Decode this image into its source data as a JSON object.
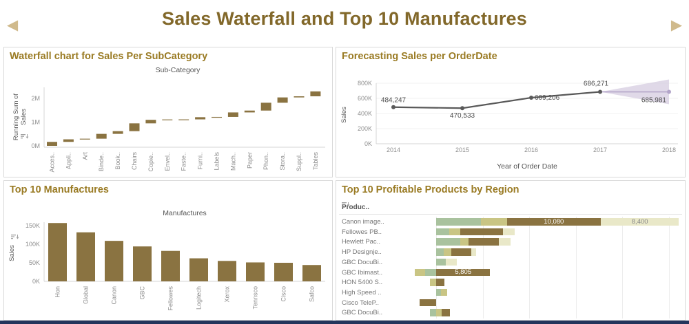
{
  "colors": {
    "title": "#82682a",
    "ptitle": "#9a7b24",
    "arrow": "#d0ba8c",
    "border": "#d9d9d9",
    "olive": "#8a7341",
    "tick": "#8e8e8e",
    "alabel": "#555555",
    "line": "#595959",
    "band": "#d5cce0",
    "bandaccent": "#b3a5c9",
    "navy": "#24355c"
  },
  "header": {
    "title": "Sales Waterfall and Top 10 Manufactures",
    "prev_icon": "◀",
    "next_icon": "▶"
  },
  "icons": {
    "prev": "chevron-left-icon",
    "next": "chevron-right-icon",
    "sort": "sort-descending-icon"
  },
  "chart_data": [
    {
      "type": "bar",
      "subtype": "waterfall",
      "title": "Waterfall chart for Sales Per SubCategory",
      "axis_title": "Sub-Category",
      "ylabel": "Running Sum of Sales",
      "ylabel_lines": [
        "Running Sum of",
        "Sales"
      ],
      "y_ticks": [
        "0M",
        "1M",
        "2M"
      ],
      "y_tick_values": [
        0,
        1000000,
        2000000
      ],
      "ylim": [
        0,
        2400000
      ],
      "categories": [
        "Acces..",
        "Appli..",
        "Art",
        "Binde..",
        "Book..",
        "Chairs",
        "Copie..",
        "Envel..",
        "Faste..",
        "Furni..",
        "Labels",
        "Mach..",
        "Paper",
        "Phon..",
        "Stora..",
        "Suppl..",
        "Tables"
      ],
      "values": [
        167000,
        107000,
        27000,
        203000,
        115000,
        328000,
        149000,
        16000,
        3000,
        92000,
        12000,
        189000,
        78000,
        330000,
        224000,
        47000,
        207000
      ],
      "running_totals": [
        167000,
        274000,
        301000,
        504000,
        619000,
        947000,
        1096000,
        1112000,
        1115000,
        1207000,
        1219000,
        1408000,
        1486000,
        1816000,
        2040000,
        2087000,
        2294000
      ]
    },
    {
      "type": "line",
      "title": "Forecasting Sales per OrderDate",
      "xlabel": "Year of Order Date",
      "ylabel": "Sales",
      "x": [
        "2014",
        "2015",
        "2016",
        "2017",
        "2018"
      ],
      "values": [
        484247,
        470533,
        609206,
        686271,
        685981
      ],
      "point_labels": [
        "484,247",
        "470,533",
        "609,206",
        "686,271",
        "685,981"
      ],
      "forecast_start_index": 3,
      "y_ticks": [
        "0K",
        "200K",
        "400K",
        "600K",
        "800K"
      ],
      "y_tick_values": [
        0,
        200000,
        400000,
        600000,
        800000
      ],
      "ylim": [
        0,
        800000
      ]
    },
    {
      "type": "bar",
      "title": "Top 10 Manufactures",
      "axis_title": "Manufactures",
      "ylabel": "Sales",
      "categories": [
        "Hon",
        "Global",
        "Canon",
        "GBC",
        "Fellowes",
        "Logitech",
        "Xerox",
        "Tennsco",
        "Cisco",
        "Safco"
      ],
      "values": [
        157000,
        132000,
        109000,
        94000,
        82000,
        62000,
        55000,
        51000,
        50000,
        44000
      ],
      "y_ticks": [
        "0K",
        "50K",
        "100K",
        "150K"
      ],
      "y_tick_values": [
        0,
        50000,
        100000,
        150000
      ],
      "ylim": [
        0,
        165000
      ]
    },
    {
      "type": "bar",
      "subtype": "stacked-horizontal",
      "title": "Top 10 Profitable Products by Region",
      "column_header": "Produc..",
      "series_colors": {
        "Central": "#a9c29e",
        "East": "#c9c584",
        "South": "#8a7341",
        "West": "#e9e8c8"
      },
      "rows": [
        {
          "label": "Canon image..",
          "segments": [
            {
              "region": "Central",
              "value": 4800
            },
            {
              "region": "East",
              "value": 2800
            },
            {
              "region": "South",
              "value": 10080,
              "label": "10,080",
              "label_color": "#ffffff"
            },
            {
              "region": "West",
              "value": 8400,
              "label": "8,400",
              "label_color": "#8a8a8a"
            }
          ]
        },
        {
          "label": "Fellowes PB..",
          "segments": [
            {
              "region": "Central",
              "value": 1400
            },
            {
              "region": "East",
              "value": 1200
            },
            {
              "region": "South",
              "value": 4600
            },
            {
              "region": "West",
              "value": 1200
            }
          ]
        },
        {
          "label": "Hewlett Pac..",
          "segments": [
            {
              "region": "Central",
              "value": 2600
            },
            {
              "region": "East",
              "value": 900
            },
            {
              "region": "South",
              "value": 3200
            },
            {
              "region": "West",
              "value": 1300
            }
          ]
        },
        {
          "label": "HP Designje..",
          "segments": [
            {
              "region": "Central",
              "value": 800
            },
            {
              "region": "East",
              "value": 800
            },
            {
              "region": "South",
              "value": 2200
            },
            {
              "region": "West",
              "value": 500
            }
          ]
        },
        {
          "label": "GBC DocuBi..",
          "segments": [
            {
              "region": "Central",
              "value": 1000
            },
            {
              "region": "West",
              "value": 1200
            }
          ]
        },
        {
          "label": "GBC Ibimast..",
          "segments": [
            {
              "region": "Central",
              "value": -1200
            },
            {
              "region": "East",
              "value": -1100
            },
            {
              "region": "South",
              "value": 5805,
              "label": "5,805",
              "label_color": "#ffffff"
            }
          ]
        },
        {
          "label": "HON 5400 S..",
          "segments": [
            {
              "region": "East",
              "value": -700
            },
            {
              "region": "South",
              "value": 900
            }
          ]
        },
        {
          "label": "High Speed ..",
          "segments": [
            {
              "region": "Central",
              "value": 500
            },
            {
              "region": "East",
              "value": 700
            }
          ]
        },
        {
          "label": "Cisco TeleP..",
          "segments": [
            {
              "region": "South",
              "value": -1800
            }
          ]
        },
        {
          "label": "GBC DocuBi..",
          "segments": [
            {
              "region": "Central",
              "value": -700
            },
            {
              "region": "East",
              "value": 600
            },
            {
              "region": "South",
              "value": 900
            }
          ]
        }
      ]
    }
  ]
}
